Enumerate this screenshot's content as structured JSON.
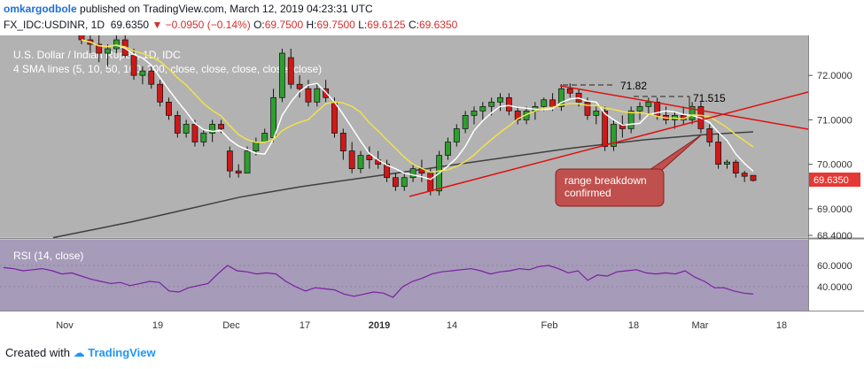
{
  "header": {
    "author": "omkargodbole",
    "published": "published on TradingView.com, March 12, 2019 04:23:31 UTC",
    "symbol": "FX_IDC:USDINR, 1D",
    "last": "69.6350",
    "change": "▼ −0.0950 (−0.14%)",
    "ohlc": {
      "o_label": "O:",
      "o": "69.7500",
      "h_label": "H:",
      "h": "69.7500",
      "l_label": "L:",
      "l": "69.6125",
      "c_label": "C:",
      "c": "69.6350"
    }
  },
  "footer": {
    "created_with": "Created with",
    "brand": "TradingView"
  },
  "colors": {
    "background": "#b2b2b2",
    "rsi_background": "#a69bb9",
    "up_candle": "#2e9e2e",
    "down_candle": "#d01818",
    "sma5": "#ffffff",
    "sma10": "#f2e14a",
    "sma100": "#404040",
    "trendline": "#e01010",
    "rsi_line": "#7b1fa2",
    "callout": "#c0504d",
    "price_tag": "#e53935"
  },
  "chart_data": {
    "type": "candlestick",
    "title": "U.S. Dollar / Indian Rupee, 1D, IDC",
    "indicator": "4 SMA lines (5, 10, 50, 100, 200, close, close, close, close, close)",
    "price_axis": {
      "ticks": [
        "72.0000",
        "71.0000",
        "70.0000",
        "69.0000",
        "68.4000"
      ],
      "ylim": [
        68.4,
        72.8
      ]
    },
    "last_price": "69.6350",
    "time_axis": {
      "ticks": [
        "Nov",
        "19",
        "Dec",
        "17",
        "2019",
        "14",
        "Feb",
        "18",
        "Mar",
        "18"
      ]
    },
    "candles": [
      {
        "o": 73.1,
        "h": 73.3,
        "l": 72.7,
        "c": 72.8
      },
      {
        "o": 72.8,
        "h": 73.0,
        "l": 72.5,
        "c": 72.7
      },
      {
        "o": 72.7,
        "h": 72.9,
        "l": 72.3,
        "c": 72.5
      },
      {
        "o": 72.5,
        "h": 72.7,
        "l": 72.2,
        "c": 72.6
      },
      {
        "o": 72.6,
        "h": 72.9,
        "l": 72.5,
        "c": 72.8
      },
      {
        "o": 72.8,
        "h": 72.9,
        "l": 72.4,
        "c": 72.45
      },
      {
        "o": 72.45,
        "h": 72.6,
        "l": 71.9,
        "c": 72.0
      },
      {
        "o": 72.0,
        "h": 72.2,
        "l": 71.8,
        "c": 72.1
      },
      {
        "o": 72.1,
        "h": 72.2,
        "l": 71.7,
        "c": 71.8
      },
      {
        "o": 71.8,
        "h": 71.9,
        "l": 71.3,
        "c": 71.4
      },
      {
        "o": 71.4,
        "h": 71.5,
        "l": 71.0,
        "c": 71.1
      },
      {
        "o": 71.1,
        "h": 71.2,
        "l": 70.6,
        "c": 70.7
      },
      {
        "o": 70.7,
        "h": 71.0,
        "l": 70.6,
        "c": 70.9
      },
      {
        "o": 70.9,
        "h": 71.0,
        "l": 70.4,
        "c": 70.5
      },
      {
        "o": 70.5,
        "h": 70.8,
        "l": 70.4,
        "c": 70.7
      },
      {
        "o": 70.7,
        "h": 71.0,
        "l": 70.5,
        "c": 70.9
      },
      {
        "o": 70.9,
        "h": 71.0,
        "l": 70.7,
        "c": 70.8
      },
      {
        "o": 70.3,
        "h": 70.4,
        "l": 69.7,
        "c": 69.85
      },
      {
        "o": 69.85,
        "h": 70.0,
        "l": 69.7,
        "c": 69.8
      },
      {
        "o": 69.8,
        "h": 70.4,
        "l": 69.8,
        "c": 70.3
      },
      {
        "o": 70.3,
        "h": 70.6,
        "l": 70.2,
        "c": 70.5
      },
      {
        "o": 70.5,
        "h": 70.8,
        "l": 70.5,
        "c": 70.7
      },
      {
        "o": 70.6,
        "h": 71.7,
        "l": 70.5,
        "c": 71.5
      },
      {
        "o": 71.5,
        "h": 72.6,
        "l": 71.4,
        "c": 72.5
      },
      {
        "o": 72.4,
        "h": 72.6,
        "l": 71.7,
        "c": 71.8
      },
      {
        "o": 71.8,
        "h": 72.0,
        "l": 71.5,
        "c": 71.7
      },
      {
        "o": 71.7,
        "h": 71.9,
        "l": 71.3,
        "c": 71.4
      },
      {
        "o": 71.4,
        "h": 71.8,
        "l": 71.3,
        "c": 71.7
      },
      {
        "o": 71.7,
        "h": 71.9,
        "l": 71.4,
        "c": 71.5
      },
      {
        "o": 71.4,
        "h": 71.5,
        "l": 70.6,
        "c": 70.7
      },
      {
        "o": 70.7,
        "h": 70.8,
        "l": 70.1,
        "c": 70.3
      },
      {
        "o": 70.3,
        "h": 70.5,
        "l": 69.8,
        "c": 69.9
      },
      {
        "o": 69.9,
        "h": 70.3,
        "l": 69.8,
        "c": 70.2
      },
      {
        "o": 70.2,
        "h": 70.4,
        "l": 69.9,
        "c": 70.1
      },
      {
        "o": 70.1,
        "h": 70.3,
        "l": 69.9,
        "c": 70.0
      },
      {
        "o": 70.0,
        "h": 70.1,
        "l": 69.6,
        "c": 69.7
      },
      {
        "o": 69.7,
        "h": 69.8,
        "l": 69.4,
        "c": 69.5
      },
      {
        "o": 69.5,
        "h": 69.8,
        "l": 69.4,
        "c": 69.7
      },
      {
        "o": 69.7,
        "h": 70.0,
        "l": 69.6,
        "c": 69.9
      },
      {
        "o": 69.9,
        "h": 70.1,
        "l": 69.6,
        "c": 69.8
      },
      {
        "o": 69.8,
        "h": 69.9,
        "l": 69.3,
        "c": 69.4
      },
      {
        "o": 69.4,
        "h": 70.3,
        "l": 69.3,
        "c": 70.2
      },
      {
        "o": 70.2,
        "h": 70.6,
        "l": 70.1,
        "c": 70.5
      },
      {
        "o": 70.5,
        "h": 70.9,
        "l": 70.4,
        "c": 70.8
      },
      {
        "o": 70.8,
        "h": 71.2,
        "l": 70.7,
        "c": 71.1
      },
      {
        "o": 71.1,
        "h": 71.3,
        "l": 70.9,
        "c": 71.2
      },
      {
        "o": 71.2,
        "h": 71.4,
        "l": 71.0,
        "c": 71.3
      },
      {
        "o": 71.3,
        "h": 71.5,
        "l": 71.1,
        "c": 71.4
      },
      {
        "o": 71.4,
        "h": 71.6,
        "l": 71.2,
        "c": 71.5
      },
      {
        "o": 71.5,
        "h": 71.6,
        "l": 71.1,
        "c": 71.2
      },
      {
        "o": 71.2,
        "h": 71.3,
        "l": 70.9,
        "c": 71.0
      },
      {
        "o": 71.0,
        "h": 71.3,
        "l": 70.9,
        "c": 71.2
      },
      {
        "o": 71.2,
        "h": 71.4,
        "l": 71.0,
        "c": 71.3
      },
      {
        "o": 71.3,
        "h": 71.5,
        "l": 71.2,
        "c": 71.45
      },
      {
        "o": 71.45,
        "h": 71.6,
        "l": 71.2,
        "c": 71.3
      },
      {
        "o": 71.3,
        "h": 71.8,
        "l": 71.2,
        "c": 71.7
      },
      {
        "o": 71.7,
        "h": 71.82,
        "l": 71.5,
        "c": 71.6
      },
      {
        "o": 71.6,
        "h": 71.7,
        "l": 71.3,
        "c": 71.4
      },
      {
        "o": 71.4,
        "h": 71.5,
        "l": 71.0,
        "c": 71.1
      },
      {
        "o": 71.1,
        "h": 71.3,
        "l": 70.9,
        "c": 71.2
      },
      {
        "o": 71.2,
        "h": 71.3,
        "l": 70.3,
        "c": 70.4
      },
      {
        "o": 70.4,
        "h": 71.0,
        "l": 70.3,
        "c": 70.9
      },
      {
        "o": 70.9,
        "h": 71.1,
        "l": 70.6,
        "c": 70.8
      },
      {
        "o": 70.8,
        "h": 71.3,
        "l": 70.7,
        "c": 71.2
      },
      {
        "o": 71.2,
        "h": 71.4,
        "l": 71.0,
        "c": 71.3
      },
      {
        "o": 71.3,
        "h": 71.5,
        "l": 71.1,
        "c": 71.4
      },
      {
        "o": 71.4,
        "h": 71.5,
        "l": 71.0,
        "c": 71.1
      },
      {
        "o": 71.1,
        "h": 71.3,
        "l": 70.9,
        "c": 71.0
      },
      {
        "o": 71.0,
        "h": 71.2,
        "l": 70.8,
        "c": 71.1
      },
      {
        "o": 71.1,
        "h": 71.3,
        "l": 70.9,
        "c": 71.0
      },
      {
        "o": 71.0,
        "h": 71.4,
        "l": 70.9,
        "c": 71.3
      },
      {
        "o": 71.3,
        "h": 71.4,
        "l": 70.7,
        "c": 70.8
      },
      {
        "o": 70.8,
        "h": 70.9,
        "l": 70.4,
        "c": 70.5
      },
      {
        "o": 70.5,
        "h": 70.7,
        "l": 69.9,
        "c": 70.0
      },
      {
        "o": 70.0,
        "h": 70.1,
        "l": 69.9,
        "c": 70.05
      },
      {
        "o": 70.05,
        "h": 70.1,
        "l": 69.7,
        "c": 69.8
      },
      {
        "o": 69.8,
        "h": 69.85,
        "l": 69.6,
        "c": 69.73
      },
      {
        "o": 69.75,
        "h": 69.75,
        "l": 69.6125,
        "c": 69.635
      }
    ],
    "sma100": [
      68.35,
      68.42,
      68.49,
      68.56,
      68.63,
      68.7,
      68.78,
      68.86,
      68.94,
      69.02,
      69.1,
      69.18,
      69.26,
      69.32,
      69.38,
      69.44,
      69.5,
      69.55,
      69.6,
      69.65,
      69.7,
      69.75,
      69.8,
      69.85,
      69.9,
      69.95,
      70.0,
      70.05,
      70.1,
      70.15,
      70.2,
      70.25,
      70.3,
      70.35,
      70.39,
      70.43,
      70.47,
      70.51,
      70.55,
      70.58,
      70.61,
      70.64,
      70.67,
      70.69,
      70.71,
      70.73
    ],
    "annotations": {
      "level_high": "71.82",
      "level_mid": "71.515",
      "callout": "range breakdown confirmed"
    },
    "rsi": {
      "label": "RSI (14, close)",
      "ticks": [
        "60.0000",
        "40.0000"
      ],
      "ylim": [
        20,
        80
      ],
      "values": [
        58,
        57,
        55,
        56,
        57,
        55,
        52,
        53,
        50,
        47,
        45,
        43,
        44,
        41,
        43,
        45,
        44,
        36,
        35,
        39,
        41,
        43,
        52,
        60,
        55,
        54,
        52,
        53,
        52,
        45,
        40,
        36,
        39,
        38,
        37,
        33,
        31,
        33,
        35,
        34,
        30,
        40,
        45,
        48,
        52,
        54,
        55,
        56,
        57,
        55,
        52,
        54,
        55,
        57,
        56,
        59,
        60,
        57,
        53,
        55,
        46,
        51,
        50,
        54,
        55,
        56,
        53,
        52,
        53,
        52,
        55,
        49,
        45,
        39,
        39,
        36,
        34,
        33
      ]
    }
  }
}
